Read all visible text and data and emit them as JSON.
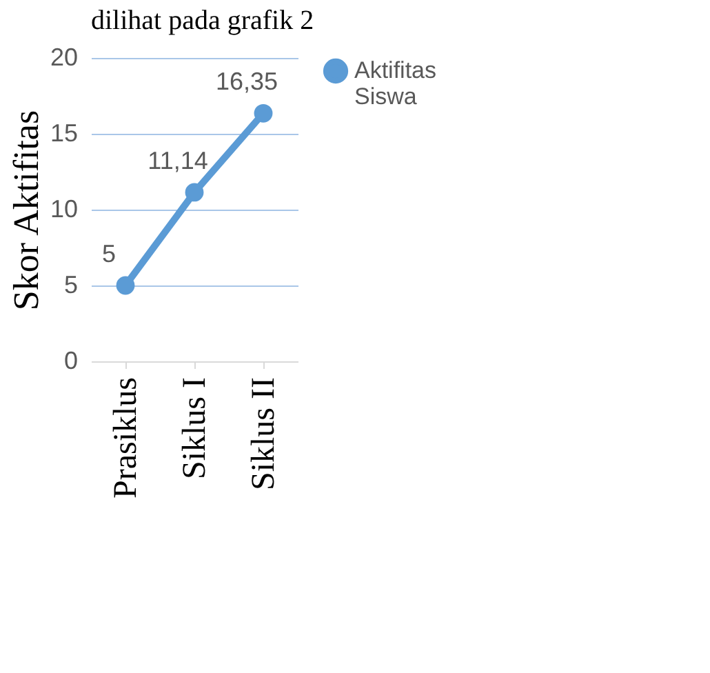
{
  "chart_data": {
    "type": "line",
    "ylabel": "Skor Aktifitas",
    "annotations": [
      "dilihat pada grafik 2"
    ],
    "categories": [
      "Prasiklus",
      "Siklus I",
      "Siklus II"
    ],
    "series": [
      {
        "name": "Aktifitas Siswa",
        "color": "#5b9bd5",
        "values": [
          5,
          11.14,
          16.35
        ]
      }
    ],
    "value_labels": [
      "5",
      "11,14",
      "16,35"
    ],
    "ylim": [
      0,
      20
    ],
    "yticks": [
      0,
      5,
      10,
      15,
      20
    ],
    "grid": "y",
    "legend": "right",
    "marker": "circle",
    "line_style": "solid"
  }
}
